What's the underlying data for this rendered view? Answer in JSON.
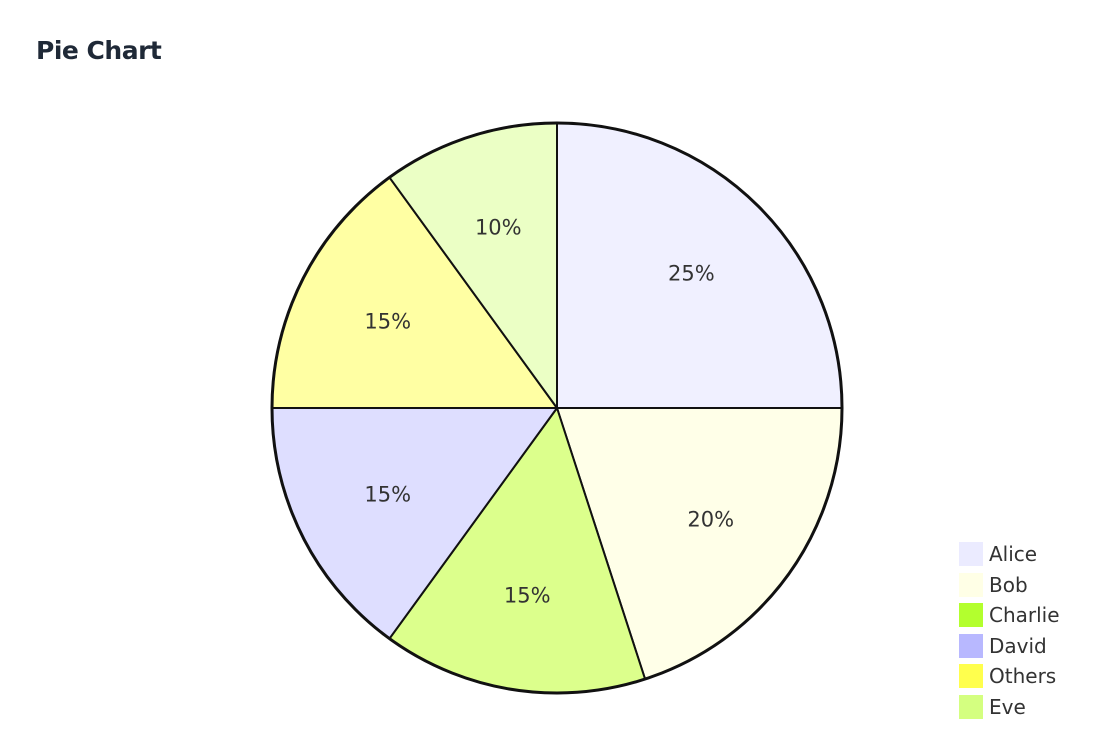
{
  "chart_data": {
    "type": "pie",
    "title": "Pie Chart",
    "start_angle_deg": 0,
    "direction": "clockwise",
    "legend_position": "bottom-right",
    "slices": [
      {
        "name": "Alice",
        "value": 25,
        "label": "25%",
        "color": "#f0f0ff"
      },
      {
        "name": "Bob",
        "value": 20,
        "label": "20%",
        "color": "#ffffe8"
      },
      {
        "name": "Charlie",
        "value": 15,
        "label": "15%",
        "color": "#dcff8c"
      },
      {
        "name": "David",
        "value": 15,
        "label": "15%",
        "color": "#dedeff"
      },
      {
        "name": "Others",
        "value": 15,
        "label": "15%",
        "color": "#ffffa3"
      },
      {
        "name": "Eve",
        "value": 10,
        "label": "10%",
        "color": "#ebffc5"
      }
    ],
    "legend": [
      {
        "name": "Alice",
        "color": "#ebebff"
      },
      {
        "name": "Bob",
        "color": "#ffffe6"
      },
      {
        "name": "Charlie",
        "color": "#b3ff2e"
      },
      {
        "name": "David",
        "color": "#b8b8ff"
      },
      {
        "name": "Others",
        "color": "#ffff4d"
      },
      {
        "name": "Eve",
        "color": "#d4ff80"
      }
    ]
  }
}
